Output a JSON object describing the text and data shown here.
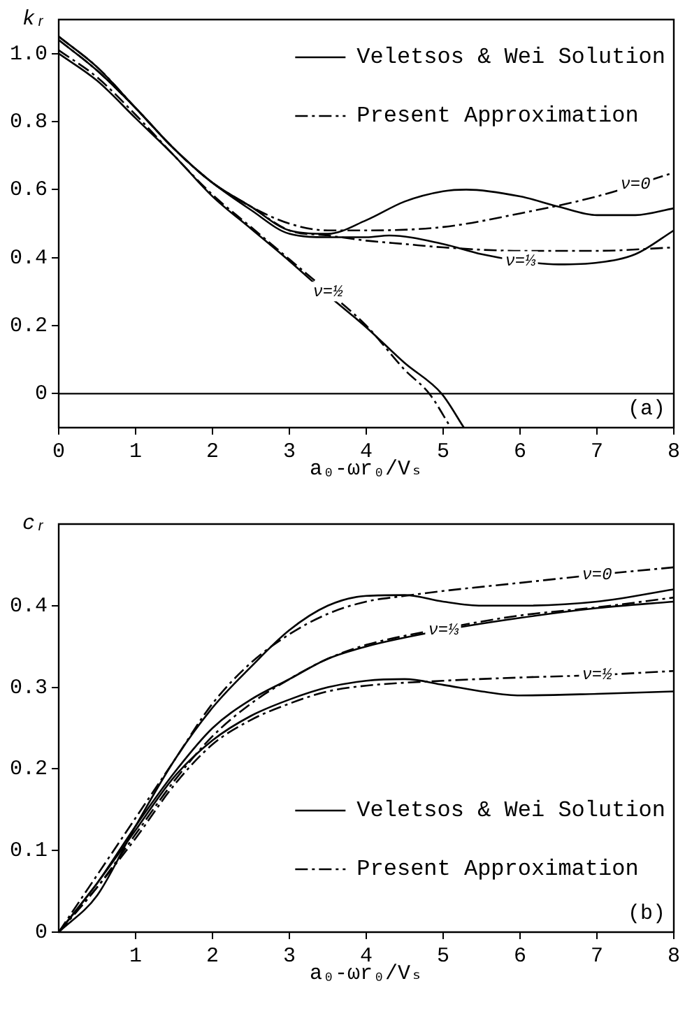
{
  "chart_data": [
    {
      "type": "line",
      "ylabel": "kᵣ",
      "xlabel": "a₀-ωr₀/Vₛ",
      "xlim": [
        0,
        8
      ],
      "xticks": [
        0,
        1,
        2,
        3,
        4,
        5,
        6,
        7,
        8
      ],
      "ylim": [
        -0.1,
        1.1
      ],
      "yticks": [
        {
          "value": 0,
          "label": "0"
        },
        0.2,
        0.4,
        0.6,
        0.8,
        {
          "value": 1,
          "label": "1.0"
        }
      ],
      "grid": false,
      "legend": "top right",
      "marker": "none",
      "ref_lines": [
        {
          "axis": "y",
          "value": 0,
          "color": "#000000",
          "line_style": "solid"
        }
      ],
      "annotations": [
        {
          "text": "ν=0",
          "x": 7.5,
          "y": 0.615
        },
        {
          "text": "ν=⅓",
          "x": 6,
          "y": 0.39
        },
        {
          "text": "ν=½",
          "x": 3.5,
          "y": 0.3
        },
        "(a)"
      ],
      "series": [
        {
          "name": "Veletsos & Wei Solution",
          "color": "#000000",
          "line_style": "solid",
          "x": [
            0,
            0.5,
            1,
            1.5,
            2,
            2.5,
            3,
            3.5,
            4,
            4.5,
            5,
            5.3,
            6,
            6.5,
            7,
            7.5,
            8
          ],
          "values": [
            1.05,
            0.96,
            0.84,
            0.72,
            0.62,
            0.55,
            0.48,
            0.47,
            0.51,
            0.565,
            0.595,
            0.6,
            0.58,
            0.55,
            0.525,
            0.525,
            0.545
          ]
        },
        {
          "name": "Present Approximation",
          "color": "#000000",
          "line_style": "dashed",
          "x": [
            0,
            0.5,
            1,
            1.5,
            2,
            2.5,
            3,
            3.5,
            4,
            5,
            6,
            7,
            8
          ],
          "values": [
            1.04,
            0.95,
            0.84,
            0.72,
            0.62,
            0.55,
            0.5,
            0.48,
            0.48,
            0.49,
            0.53,
            0.58,
            0.65
          ]
        },
        {
          "color": "#000000",
          "line_style": "solid",
          "x": [
            0,
            0.5,
            1,
            1.5,
            2,
            2.5,
            3,
            3.5,
            4,
            4.3,
            5,
            5.5,
            6,
            6.5,
            7,
            7.5,
            8
          ],
          "values": [
            1.04,
            0.95,
            0.84,
            0.72,
            0.62,
            0.54,
            0.47,
            0.46,
            0.46,
            0.465,
            0.44,
            0.41,
            0.39,
            0.38,
            0.385,
            0.41,
            0.48
          ]
        },
        {
          "color": "#000000",
          "line_style": "dashed",
          "x": [
            0,
            0.5,
            1,
            1.5,
            2,
            2.5,
            3,
            3.5,
            4,
            4.5,
            5,
            6,
            7,
            8
          ],
          "values": [
            1.05,
            0.96,
            0.84,
            0.72,
            0.62,
            0.55,
            0.48,
            0.465,
            0.45,
            0.44,
            0.43,
            0.42,
            0.42,
            0.43
          ]
        },
        {
          "color": "#000000",
          "line_style": "solid",
          "x": [
            0,
            0.5,
            1,
            1.5,
            2,
            2.5,
            3,
            3.5,
            4,
            4.5,
            4.98,
            5.27
          ],
          "values": [
            1.0,
            0.92,
            0.81,
            0.7,
            0.58,
            0.485,
            0.39,
            0.29,
            0.195,
            0.09,
            0,
            -0.1
          ]
        },
        {
          "color": "#000000",
          "line_style": "dashed",
          "x": [
            0,
            0.5,
            1,
            1.5,
            2,
            2.5,
            3,
            3.5,
            4,
            4.5,
            4.82,
            5.1
          ],
          "values": [
            1.01,
            0.93,
            0.82,
            0.7,
            0.585,
            0.49,
            0.395,
            0.3,
            0.2,
            0.07,
            0,
            -0.1
          ]
        }
      ]
    },
    {
      "type": "line",
      "ylabel": "cᵣ",
      "xlabel": "a₀-ωr₀/Vₛ",
      "xlim": [
        0,
        8
      ],
      "xticks": [
        1,
        2,
        3,
        4,
        5,
        6,
        7,
        8
      ],
      "ylim": [
        0,
        0.5
      ],
      "yticks": [
        0,
        0.1,
        0.2,
        0.3,
        0.4
      ],
      "grid": false,
      "legend": "bottom right",
      "marker": "none",
      "annotations": [
        {
          "text": "ν=0",
          "x": 7,
          "y": 0.438
        },
        {
          "text": "ν=⅓",
          "x": 5,
          "y": 0.37
        },
        {
          "text": "ν=½",
          "x": 7,
          "y": 0.315
        },
        "(b)"
      ],
      "series": [
        {
          "name": "Veletsos & Wei Solution",
          "color": "#000000",
          "line_style": "solid",
          "x": [
            0,
            0.5,
            1,
            1.5,
            2,
            2.5,
            3,
            3.5,
            4,
            4.5,
            5,
            5.5,
            6,
            7,
            8
          ],
          "values": [
            0,
            0.045,
            0.13,
            0.21,
            0.275,
            0.325,
            0.37,
            0.4,
            0.412,
            0.413,
            0.405,
            0.4,
            0.4,
            0.405,
            0.42
          ]
        },
        {
          "name": "Present Approximation",
          "color": "#000000",
          "line_style": "dashed",
          "x": [
            0,
            0.5,
            1,
            1.5,
            2,
            2.5,
            3,
            3.5,
            4,
            4.5,
            5,
            6,
            7,
            8
          ],
          "values": [
            0,
            0.07,
            0.14,
            0.21,
            0.28,
            0.33,
            0.365,
            0.39,
            0.405,
            0.412,
            0.418,
            0.428,
            0.438,
            0.447
          ]
        },
        {
          "color": "#000000",
          "line_style": "solid",
          "x": [
            0,
            0.5,
            1,
            1.5,
            2,
            2.5,
            3,
            3.5,
            4,
            5,
            6,
            7,
            8
          ],
          "values": [
            0,
            0.06,
            0.13,
            0.195,
            0.25,
            0.285,
            0.31,
            0.335,
            0.35,
            0.37,
            0.385,
            0.397,
            0.405
          ]
        },
        {
          "color": "#000000",
          "line_style": "dashed",
          "x": [
            0,
            0.5,
            1,
            1.5,
            2,
            2.5,
            3,
            3.5,
            4,
            5,
            6,
            7,
            8
          ],
          "values": [
            0,
            0.055,
            0.12,
            0.185,
            0.24,
            0.28,
            0.31,
            0.335,
            0.352,
            0.372,
            0.388,
            0.398,
            0.41
          ]
        },
        {
          "color": "#000000",
          "line_style": "solid",
          "x": [
            0,
            0.5,
            1,
            1.5,
            2,
            2.5,
            3,
            3.5,
            4,
            4.5,
            5,
            5.5,
            6,
            7,
            8
          ],
          "values": [
            0,
            0.06,
            0.125,
            0.19,
            0.235,
            0.265,
            0.285,
            0.3,
            0.308,
            0.31,
            0.303,
            0.295,
            0.29,
            0.292,
            0.295
          ]
        },
        {
          "color": "#000000",
          "line_style": "dashed",
          "x": [
            0,
            0.5,
            1,
            1.5,
            2,
            2.5,
            3,
            3.5,
            4,
            5,
            6,
            7,
            8
          ],
          "values": [
            0,
            0.055,
            0.115,
            0.18,
            0.23,
            0.26,
            0.28,
            0.295,
            0.302,
            0.308,
            0.312,
            0.315,
            0.32
          ]
        }
      ]
    }
  ]
}
